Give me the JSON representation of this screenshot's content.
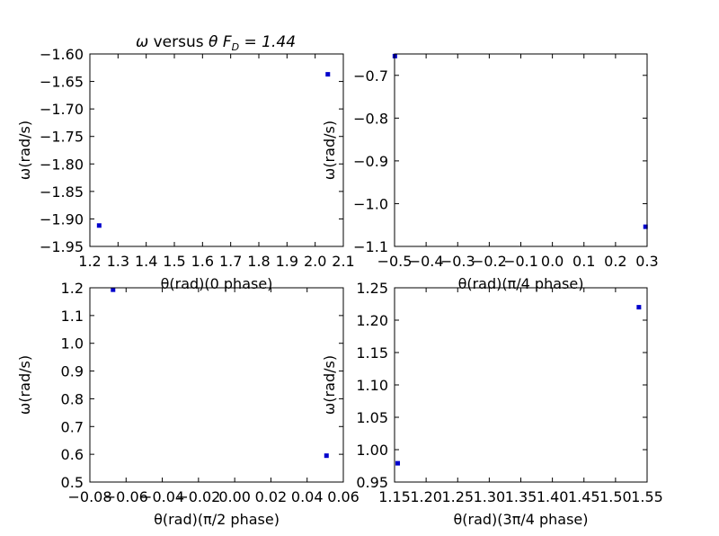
{
  "figure": {
    "background": "#ffffff",
    "marker_color": "#0000cc"
  },
  "chart_data": [
    {
      "type": "scatter",
      "title": "ω versus θ F_D = 1.44",
      "title_parts": {
        "w": "ω",
        "mid": " versus ",
        "th": "θ",
        "f": "F",
        "sub": "D",
        "eq": " = 1.44"
      },
      "xlabel": "θ(rad)(0 phase)",
      "ylabel": "ω(rad/s)",
      "xlim": [
        1.2,
        2.1
      ],
      "ylim": [
        -1.95,
        -1.6
      ],
      "xticks": [
        "1.2",
        "1.3",
        "1.4",
        "1.5",
        "1.6",
        "1.7",
        "1.8",
        "1.9",
        "2.0",
        "2.1"
      ],
      "yticks": [
        "−1.95",
        "−1.90",
        "−1.85",
        "−1.80",
        "−1.75",
        "−1.70",
        "−1.65",
        "−1.60"
      ],
      "points": [
        {
          "x": 1.233,
          "y": -1.912
        },
        {
          "x": 2.045,
          "y": -1.637
        }
      ]
    },
    {
      "type": "scatter",
      "xlabel": "θ(rad)(π/4 phase)",
      "ylabel": "ω(rad/s)",
      "xlim": [
        -0.5,
        0.3
      ],
      "ylim": [
        -1.1,
        -0.65
      ],
      "xticks": [
        "−0.5",
        "−0.4",
        "−0.3",
        "−0.2",
        "−0.1",
        "0.0",
        "0.1",
        "0.2",
        "0.3"
      ],
      "yticks": [
        "−1.1",
        "−1.0",
        "−0.9",
        "−0.8",
        "−0.7"
      ],
      "points": [
        {
          "x": -0.499,
          "y": -0.655
        },
        {
          "x": 0.295,
          "y": -1.054
        }
      ]
    },
    {
      "type": "scatter",
      "xlabel": "θ(rad)(π/2 phase)",
      "ylabel": "ω(rad/s)",
      "xlim": [
        -0.08,
        0.06
      ],
      "ylim": [
        0.5,
        1.2
      ],
      "xticks": [
        "−0.08",
        "−0.06",
        "−0.04",
        "−0.02",
        "0.00",
        "0.02",
        "0.04",
        "0.06"
      ],
      "yticks": [
        "0.5",
        "0.6",
        "0.7",
        "0.8",
        "0.9",
        "1.0",
        "1.1",
        "1.2"
      ],
      "points": [
        {
          "x": -0.0672,
          "y": 1.193
        },
        {
          "x": 0.0507,
          "y": 0.595
        }
      ]
    },
    {
      "type": "scatter",
      "xlabel": "θ(rad)(3π/4 phase)",
      "ylabel": "ω(rad/s)",
      "xlim": [
        1.15,
        1.55
      ],
      "ylim": [
        0.95,
        1.25
      ],
      "xticks": [
        "1.15",
        "1.20",
        "1.25",
        "1.30",
        "1.35",
        "1.40",
        "1.45",
        "1.50",
        "1.55"
      ],
      "yticks": [
        "0.95",
        "1.00",
        "1.05",
        "1.10",
        "1.15",
        "1.20",
        "1.25"
      ],
      "points": [
        {
          "x": 1.155,
          "y": 0.979
        },
        {
          "x": 1.537,
          "y": 1.22
        }
      ]
    }
  ]
}
